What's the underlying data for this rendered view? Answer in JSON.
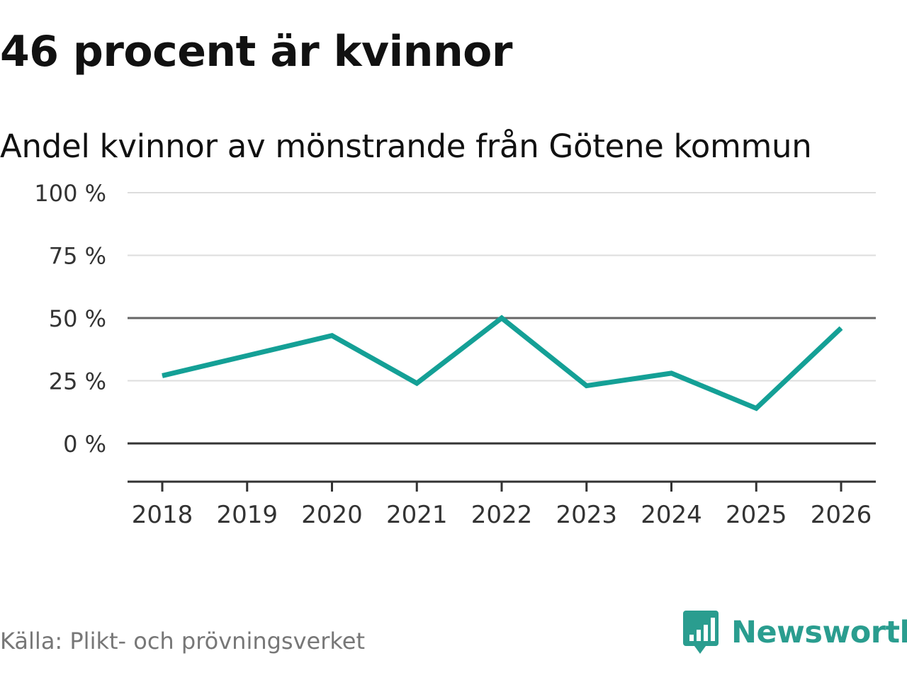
{
  "title": "46 procent är kvinnor",
  "source": "Källa: Plikt- och prövningsverket",
  "brand": {
    "name": "Newsworthy",
    "icon": "newsworthy-logo-icon",
    "color": "#2a9d8f"
  },
  "chart_data": {
    "type": "line",
    "title": "Andel kvinnor av mönstrande från Götene kommun",
    "xlabel": "",
    "ylabel": "",
    "categories": [
      "2018",
      "2019",
      "2020",
      "2021",
      "2022",
      "2023",
      "2024",
      "2025",
      "2026"
    ],
    "series": [
      {
        "name": "Andel kvinnor",
        "values": [
          27,
          35,
          43,
          24,
          50,
          23,
          28,
          14,
          46
        ],
        "color": "#14a096"
      }
    ],
    "ylim": [
      -15,
      100
    ],
    "yticks": [
      {
        "value": 100,
        "label": "100 %"
      },
      {
        "value": 75,
        "label": "75 %"
      },
      {
        "value": 50,
        "label": "50 %"
      },
      {
        "value": 25,
        "label": "25 %"
      },
      {
        "value": 0,
        "label": "0 %"
      }
    ],
    "highlight_lines": [
      0,
      50
    ],
    "grid": true
  }
}
